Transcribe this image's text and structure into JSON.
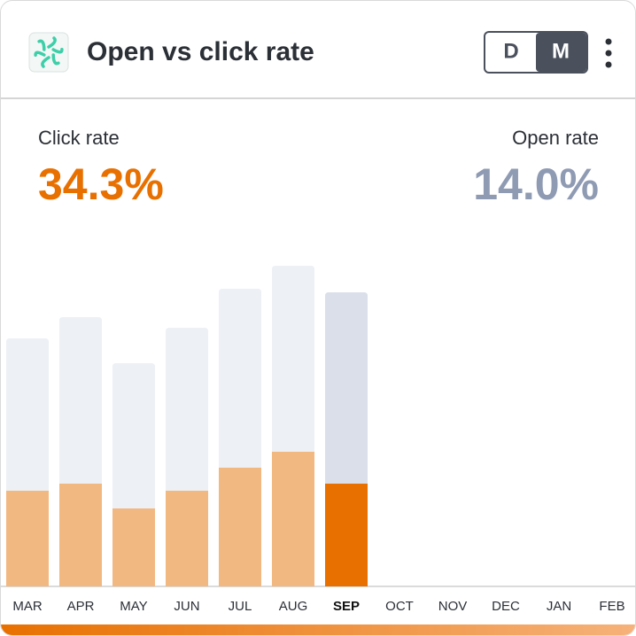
{
  "header": {
    "title": "Open vs click rate",
    "toggle": [
      "D",
      "M"
    ],
    "active_toggle": 1
  },
  "stats": [
    {
      "label": "Click rate",
      "value": "34.3%",
      "color": "#e87000"
    },
    {
      "label": "Open rate",
      "value": "14.0%",
      "color": "#8f9bb3"
    }
  ],
  "chart_data": {
    "type": "stacked-bar",
    "categories": [
      "MAR",
      "APR",
      "MAY",
      "JUN",
      "JUL",
      "AUG",
      "SEP",
      "OCT",
      "NOV",
      "DEC",
      "JAN",
      "FEB"
    ],
    "series": [
      {
        "name": "Click rate",
        "color": "#f2b882",
        "selected_color": "#e87000",
        "values": [
          10.8,
          11.6,
          8.8,
          10.8,
          13.4,
          15.2,
          11.6,
          null,
          null,
          null,
          null,
          null
        ]
      },
      {
        "name": "Open rate",
        "color": "#edf0f5",
        "selected_color": "#dbdfe9",
        "values": [
          17.2,
          18.8,
          16.4,
          18.4,
          20.2,
          21.0,
          21.6,
          null,
          null,
          null,
          null,
          null
        ]
      }
    ],
    "selected": 6,
    "ylim": [
      0,
      40
    ]
  }
}
